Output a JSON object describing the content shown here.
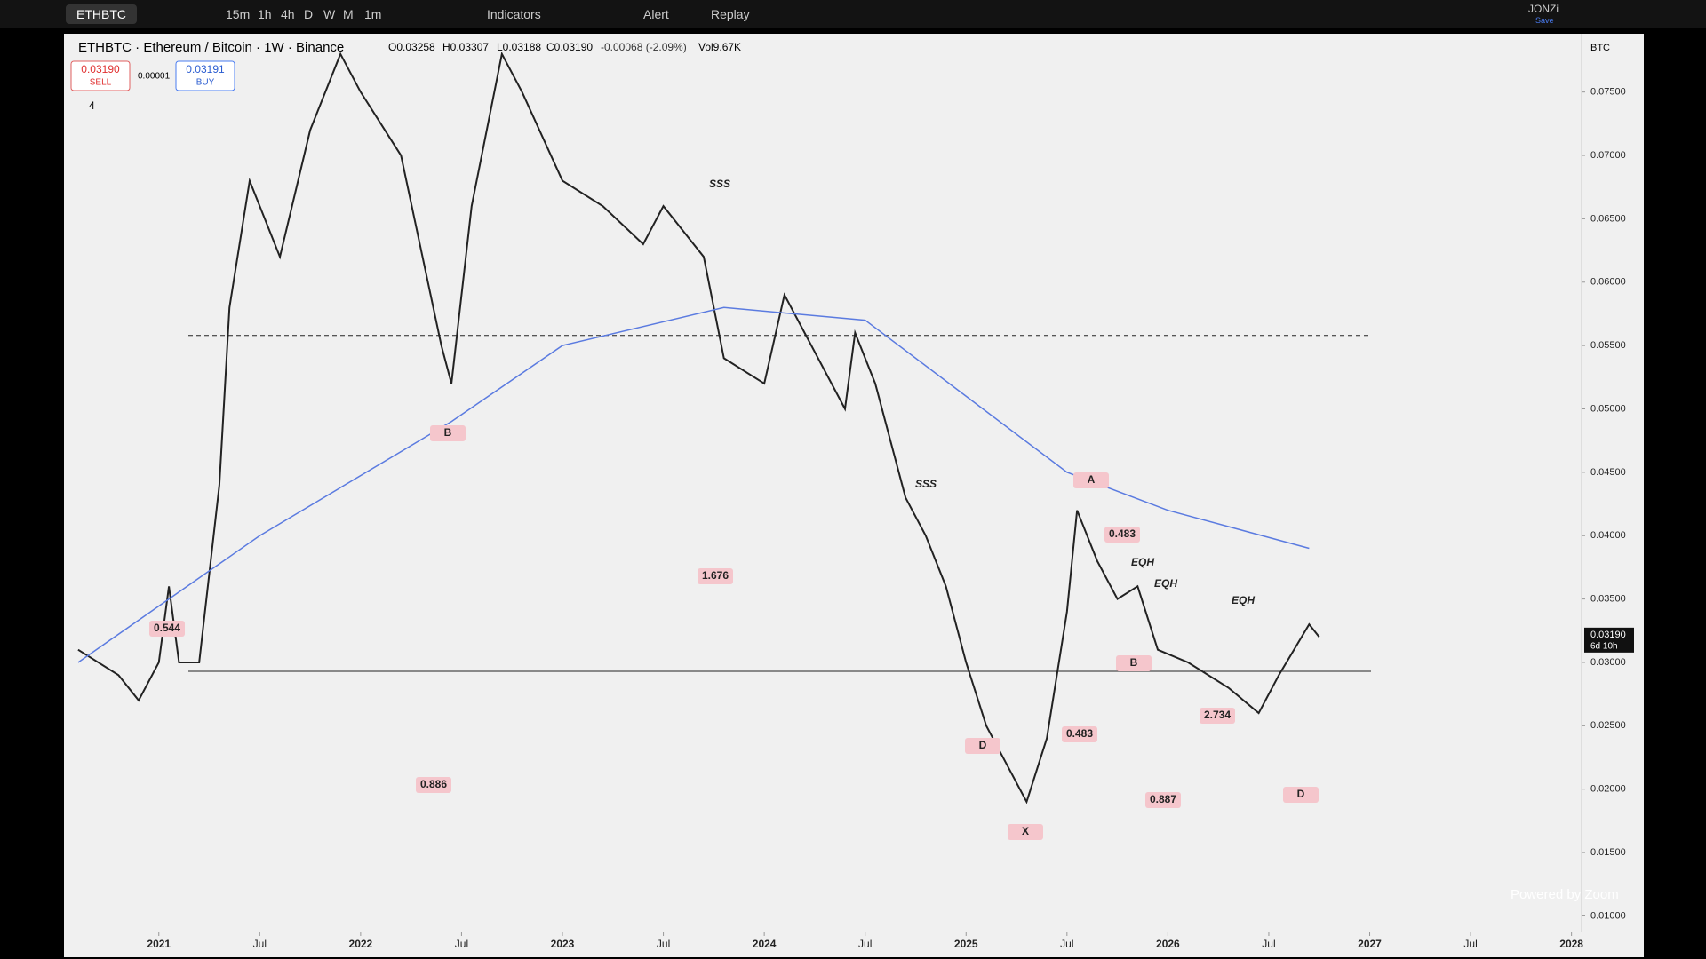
{
  "toolbar": {
    "symbol": "ETHBTC",
    "intervals": [
      "15m",
      "1h",
      "4h",
      "D",
      "W",
      "M",
      "1m"
    ],
    "indicators": "Indicators",
    "alert": "Alert",
    "replay": "Replay",
    "user": "JONZi",
    "save": "Save"
  },
  "legend": {
    "title": "ETHBTC · Ethereum / Bitcoin · 1W · Binance",
    "open": "O0.03258",
    "high": "H0.03307",
    "low": "L0.03188",
    "close": "C0.03190",
    "change": "-0.00068 (-2.09%)",
    "volume": "Vol9.67K",
    "sell_price": "0.03190",
    "sell": "SELL",
    "spread": "0.00001",
    "buy_price": "0.03191",
    "buy": "BUY",
    "collapsed": "4"
  },
  "currency": "BTC",
  "last_price": "0.03190",
  "countdown": "6d 10h",
  "watermark": "Powered by Zoom",
  "chart": {
    "xlim": [
      2020.53,
      2028.05
    ],
    "ylim": [
      0.0087,
      0.0796
    ],
    "yticks": [
      {
        "value": 0.075,
        "label": "0.07500"
      },
      {
        "value": 0.07,
        "label": "0.07000"
      },
      {
        "value": 0.065,
        "label": "0.06500"
      },
      {
        "value": 0.06,
        "label": "0.06000"
      },
      {
        "value": 0.055,
        "label": "0.05500"
      },
      {
        "value": 0.05,
        "label": "0.05000"
      },
      {
        "value": 0.045,
        "label": "0.04500"
      },
      {
        "value": 0.04,
        "label": "0.04000"
      },
      {
        "value": 0.035,
        "label": "0.03500"
      },
      {
        "value": 0.03,
        "label": "0.03000"
      },
      {
        "value": 0.025,
        "label": "0.02500"
      },
      {
        "value": 0.02,
        "label": "0.02000"
      },
      {
        "value": 0.015,
        "label": "0.01500"
      },
      {
        "value": 0.01,
        "label": "0.01000"
      }
    ],
    "xticks": [
      2021,
      {
        "value": 2021.5,
        "label": "Jul"
      },
      2022,
      {
        "value": 2022.5,
        "label": "Jul"
      },
      2023,
      {
        "value": 2023.5,
        "label": "Jul"
      },
      2024,
      {
        "value": 2024.5,
        "label": "Jul"
      },
      2025,
      {
        "value": 2025.5,
        "label": "Jul"
      },
      2026,
      {
        "value": 2026.5,
        "label": "Jul"
      },
      2027,
      {
        "value": 2027.5,
        "label": "Jul"
      },
      2028
    ],
    "series": [
      {
        "name": "Price",
        "color": "#222",
        "x": [
          2020.6,
          2020.8,
          2020.9,
          2021.0,
          2021.05,
          2021.1,
          2021.2,
          2021.3,
          2021.35,
          2021.45,
          2021.6,
          2021.75,
          2021.9,
          2022.0,
          2022.2,
          2022.4,
          2022.45,
          2022.55,
          2022.7,
          2022.8,
          2023.0,
          2023.2,
          2023.4,
          2023.5,
          2023.7,
          2023.8,
          2024.0,
          2024.1,
          2024.2,
          2024.4,
          2024.45,
          2024.55,
          2024.7,
          2024.8,
          2024.9,
          2025.0,
          2025.1,
          2025.2,
          2025.3,
          2025.4,
          2025.5,
          2025.55,
          2025.65,
          2025.75,
          2025.85,
          2025.95,
          2026.1,
          2026.3,
          2026.45,
          2026.55,
          2026.7,
          2026.75
        ],
        "values": [
          0.031,
          0.029,
          0.027,
          0.03,
          0.036,
          0.03,
          0.03,
          0.044,
          0.058,
          0.068,
          0.062,
          0.072,
          0.078,
          0.075,
          0.07,
          0.055,
          0.052,
          0.066,
          0.078,
          0.075,
          0.068,
          0.066,
          0.063,
          0.066,
          0.062,
          0.054,
          0.052,
          0.059,
          0.056,
          0.05,
          0.056,
          0.052,
          0.043,
          0.04,
          0.036,
          0.03,
          0.025,
          0.022,
          0.019,
          0.024,
          0.034,
          0.042,
          0.038,
          0.035,
          0.036,
          0.031,
          0.03,
          0.028,
          0.026,
          0.029,
          0.033,
          0.032
        ]
      },
      {
        "name": "MA",
        "color": "#5b7be0",
        "x": [
          2020.6,
          2021.5,
          2022.45,
          2023.0,
          2023.8,
          2024.5,
          2025.0,
          2025.5,
          2026.0,
          2026.7
        ],
        "values": [
          0.03,
          0.04,
          0.049,
          0.055,
          0.058,
          0.057,
          0.051,
          0.045,
          0.042,
          0.039
        ]
      }
    ],
    "levels": [
      {
        "value": 0.0558,
        "style": "dashed"
      },
      {
        "value": 0.0293,
        "style": "solid"
      }
    ],
    "annotations": [
      "1.676",
      "0.886",
      "0.544",
      "B",
      "D",
      "X",
      "A",
      "0.483",
      "0.483",
      "B",
      "2.734",
      "0.887",
      "D",
      "EQH",
      "EQH",
      "EQH",
      "SSS",
      "SSS"
    ]
  }
}
